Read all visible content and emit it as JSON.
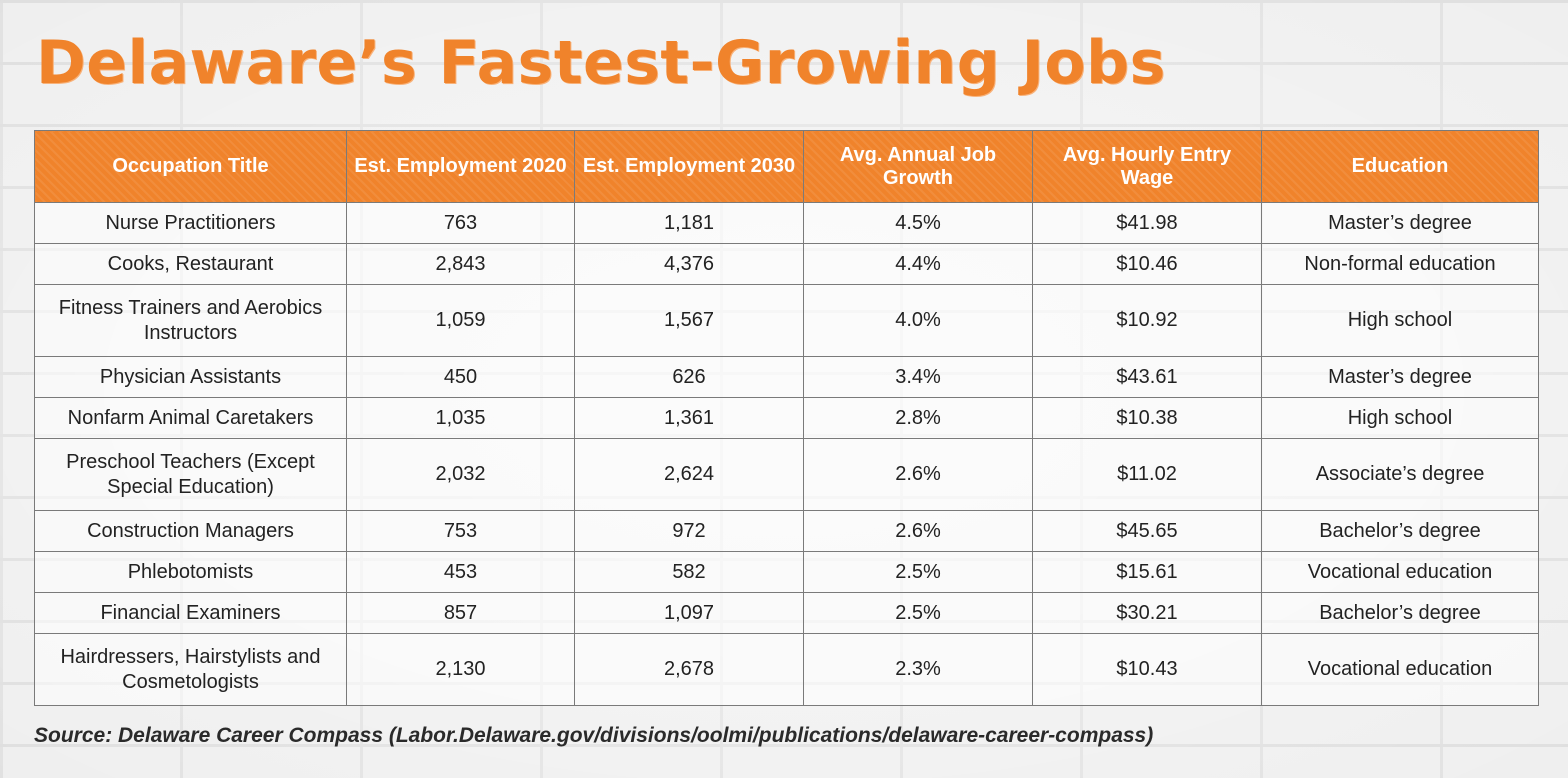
{
  "title": "Delaware’s Fastest-Growing Jobs",
  "source": "Source: Delaware Career Compass (Labor.Delaware.gov/divisions/oolmi/publications/delaware-career-compass)",
  "chart_data": {
    "type": "table",
    "title": "Delaware’s Fastest-Growing Jobs",
    "columns": [
      "Occupation Title",
      "Est. Employment 2020",
      "Est. Employment 2030",
      "Avg. Annual Job Growth",
      "Avg. Hourly Entry Wage",
      "Education"
    ],
    "rows": [
      [
        "Nurse Practitioners",
        "763",
        "1,181",
        "4.5%",
        "$41.98",
        "Master’s degree"
      ],
      [
        "Cooks, Restaurant",
        "2,843",
        "4,376",
        "4.4%",
        "$10.46",
        "Non-formal education"
      ],
      [
        "Fitness Trainers and Aerobics Instructors",
        "1,059",
        "1,567",
        "4.0%",
        "$10.92",
        "High school"
      ],
      [
        "Physician Assistants",
        "450",
        "626",
        "3.4%",
        "$43.61",
        "Master’s degree"
      ],
      [
        "Nonfarm Animal Caretakers",
        "1,035",
        "1,361",
        "2.8%",
        "$10.38",
        "High school"
      ],
      [
        "Preschool Teachers (Except Special Education)",
        "2,032",
        "2,624",
        "2.6%",
        "$11.02",
        "Associate’s degree"
      ],
      [
        "Construction Managers",
        "753",
        "972",
        "2.6%",
        "$45.65",
        "Bachelor’s degree"
      ],
      [
        "Phlebotomists",
        "453",
        "582",
        "2.5%",
        "$15.61",
        "Vocational education"
      ],
      [
        "Financial Examiners",
        "857",
        "1,097",
        "2.5%",
        "$30.21",
        "Bachelor’s degree"
      ],
      [
        "Hairdressers, Hairstylists and Cosmetologists",
        "2,130",
        "2,678",
        "2.3%",
        "$10.43",
        "Vocational education"
      ]
    ]
  },
  "colors": {
    "accent": "#f0832b",
    "header_text": "#ffffff",
    "border": "#7a7a7a",
    "body_text": "#222222"
  }
}
